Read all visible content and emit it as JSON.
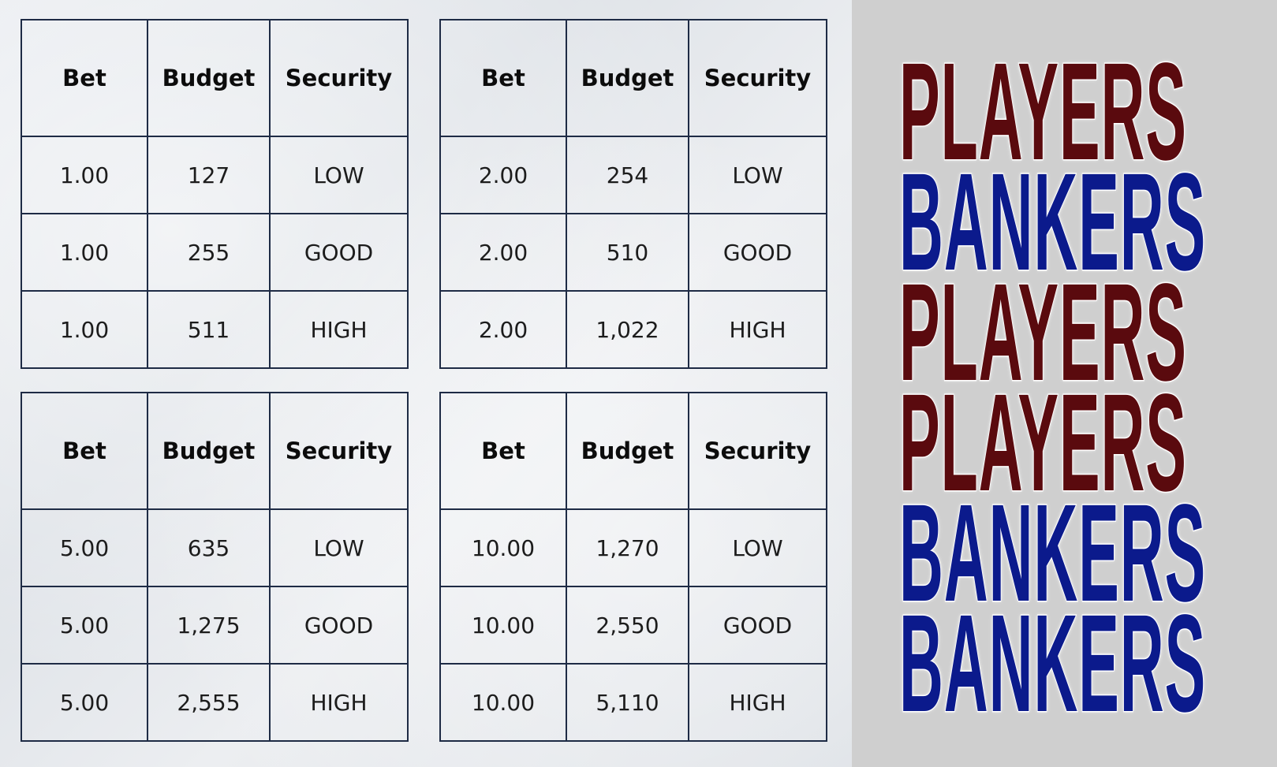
{
  "headers": [
    "Bet",
    "Budget",
    "Security"
  ],
  "tables": [
    {
      "rows": [
        [
          "1.00",
          "127",
          "LOW"
        ],
        [
          "1.00",
          "255",
          "GOOD"
        ],
        [
          "1.00",
          "511",
          "HIGH"
        ]
      ]
    },
    {
      "rows": [
        [
          "2.00",
          "254",
          "LOW"
        ],
        [
          "2.00",
          "510",
          "GOOD"
        ],
        [
          "2.00",
          "1,022",
          "HIGH"
        ]
      ]
    },
    {
      "rows": [
        [
          "5.00",
          "635",
          "LOW"
        ],
        [
          "5.00",
          "1,275",
          "GOOD"
        ],
        [
          "5.00",
          "2,555",
          "HIGH"
        ]
      ]
    },
    {
      "rows": [
        [
          "10.00",
          "1,270",
          "LOW"
        ],
        [
          "10.00",
          "2,550",
          "GOOD"
        ],
        [
          "10.00",
          "5,110",
          "HIGH"
        ]
      ]
    }
  ],
  "sequence": [
    {
      "label": "PLAYERS",
      "color": "#5a0a0e"
    },
    {
      "label": "BANKERS",
      "color": "#0b1a8c"
    },
    {
      "label": "PLAYERS",
      "color": "#5a0a0e"
    },
    {
      "label": "PLAYERS",
      "color": "#5a0a0e"
    },
    {
      "label": "BANKERS",
      "color": "#0b1a8c"
    },
    {
      "label": "BANKERS",
      "color": "#0b1a8c"
    }
  ]
}
